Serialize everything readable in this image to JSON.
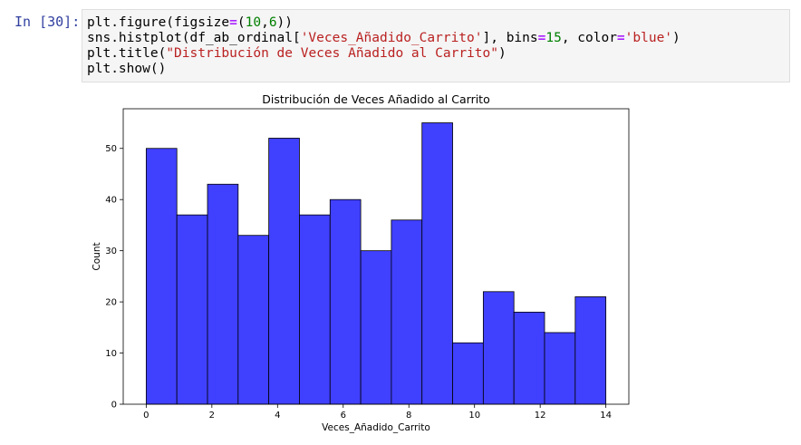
{
  "cell": {
    "prompt": "In [30]:",
    "lines": [
      [
        {
          "t": "plt.figure(figsize"
        },
        {
          "t": "=",
          "c": "op"
        },
        {
          "t": "("
        },
        {
          "t": "10",
          "c": "num"
        },
        {
          "t": ","
        },
        {
          "t": "6",
          "c": "num"
        },
        {
          "t": "))"
        }
      ],
      [
        {
          "t": "sns.histplot(df_ab_ordinal["
        },
        {
          "t": "'Veces_Añadido_Carrito'",
          "c": "str"
        },
        {
          "t": "], bins"
        },
        {
          "t": "=",
          "c": "op"
        },
        {
          "t": "15",
          "c": "num"
        },
        {
          "t": ", color"
        },
        {
          "t": "=",
          "c": "op"
        },
        {
          "t": "'blue'",
          "c": "str"
        },
        {
          "t": ")"
        }
      ],
      [
        {
          "t": "plt.title("
        },
        {
          "t": "\"Distribución de Veces Añadido al Carrito\"",
          "c": "str"
        },
        {
          "t": ")"
        }
      ],
      [
        {
          "t": "plt.show()"
        }
      ]
    ]
  },
  "chart_data": {
    "type": "bar",
    "title": "Distribución de Veces Añadido al Carrito",
    "xlabel": "Veces_Añadido_Carrito",
    "ylabel": "Count",
    "bin_edges": [
      0,
      0.9333,
      1.8667,
      2.8,
      3.7333,
      4.6667,
      5.6,
      6.5333,
      7.4667,
      8.4,
      9.3333,
      10.2667,
      11.2,
      12.1333,
      13.0667,
      14
    ],
    "values": [
      50,
      37,
      43,
      33,
      52,
      37,
      40,
      30,
      36,
      55,
      12,
      22,
      18,
      14,
      21
    ],
    "xlim": [
      -0.7,
      14.7
    ],
    "ylim": [
      0,
      57.75
    ],
    "xticks": [
      0,
      2,
      4,
      6,
      8,
      10,
      12,
      14
    ],
    "yticks": [
      0,
      10,
      20,
      30,
      40,
      50
    ],
    "bar_color": "#4040ff",
    "edge_color": "#000000",
    "grid": false
  }
}
